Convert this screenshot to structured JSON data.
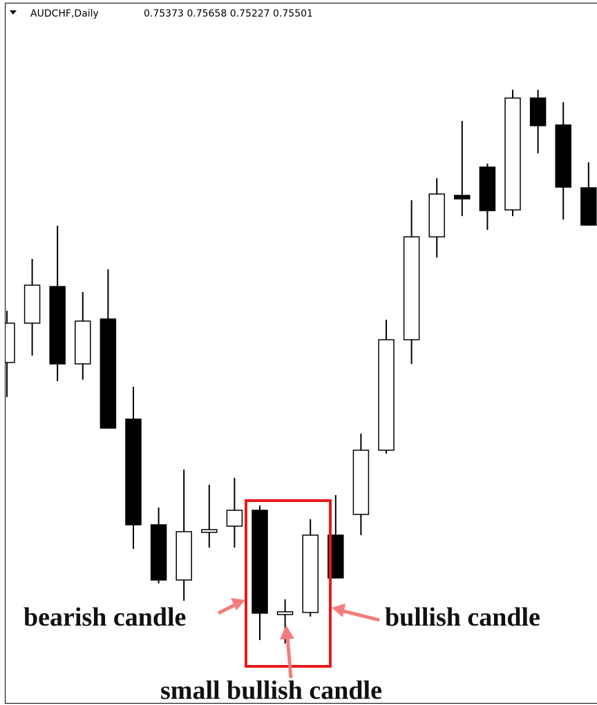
{
  "chart_data": {
    "type": "candlestick",
    "title": "AUDCHF,Daily",
    "subtitle": "0.75373 0.75658 0.75227 0.75501",
    "ylim": [
      0,
      1013
    ],
    "up_color": "#ffffff",
    "down_color": "#000000",
    "open": [
      493,
      550,
      603,
      491,
      556,
      411,
      258,
      178,
      247,
      256,
      279,
      128,
      131,
      243,
      273,
      366,
      526,
      675,
      735,
      776,
      714,
      876,
      837,
      746
    ],
    "high": [
      568,
      643,
      691,
      595,
      628,
      458,
      283,
      338,
      316,
      326,
      286,
      150,
      266,
      301,
      390,
      555,
      728,
      760,
      843,
      781,
      888,
      888,
      870,
      783
    ],
    "low": [
      443,
      503,
      466,
      468,
      398,
      223,
      173,
      148,
      225,
      225,
      91,
      86,
      125,
      181,
      243,
      361,
      491,
      645,
      705,
      685,
      705,
      796,
      700,
      692
    ],
    "close": [
      550,
      605,
      491,
      553,
      398,
      258,
      178,
      248,
      251,
      279,
      130,
      132,
      243,
      181,
      366,
      526,
      675,
      737,
      730,
      713,
      876,
      836,
      747,
      692
    ],
    "annotations": [
      "bearish candle",
      "small bullish candle",
      "bullish candle"
    ]
  }
}
